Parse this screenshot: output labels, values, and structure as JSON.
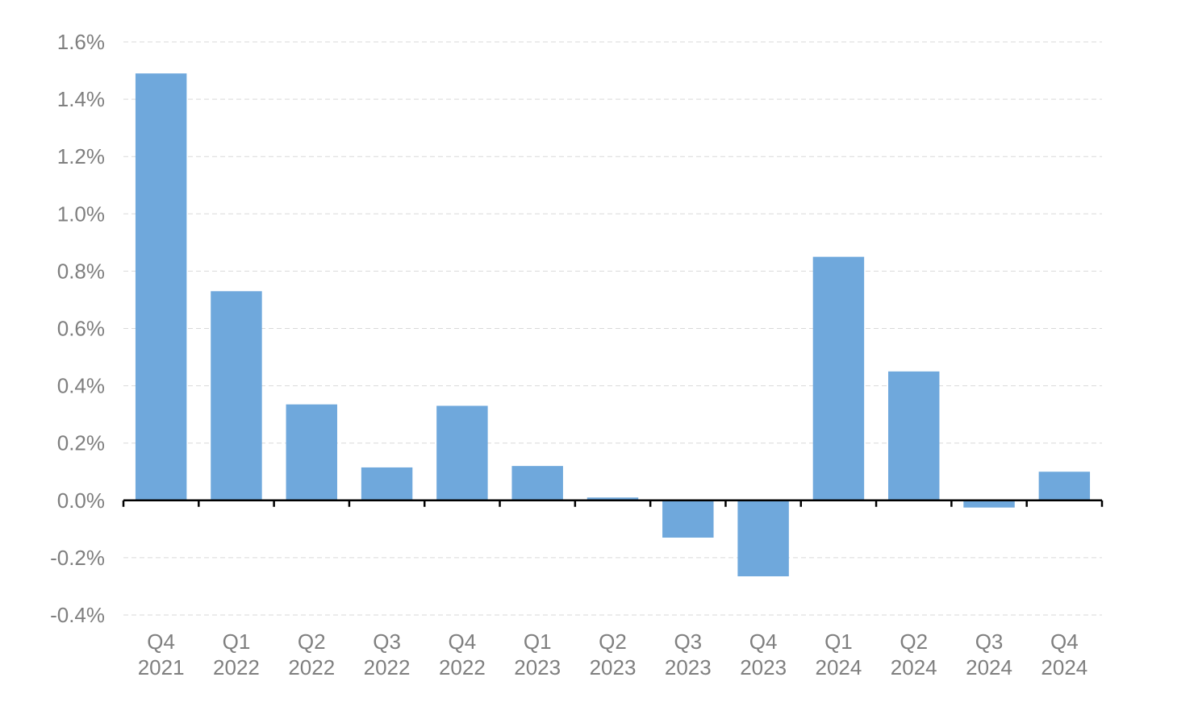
{
  "chart_data": {
    "type": "bar",
    "categories": [
      [
        "Q4",
        "2021"
      ],
      [
        "Q1",
        "2022"
      ],
      [
        "Q2",
        "2022"
      ],
      [
        "Q3",
        "2022"
      ],
      [
        "Q4",
        "2022"
      ],
      [
        "Q1",
        "2023"
      ],
      [
        "Q2",
        "2023"
      ],
      [
        "Q3",
        "2023"
      ],
      [
        "Q4",
        "2023"
      ],
      [
        "Q1",
        "2024"
      ],
      [
        "Q2",
        "2024"
      ],
      [
        "Q3",
        "2024"
      ],
      [
        "Q4",
        "2024"
      ]
    ],
    "values": [
      1.49,
      0.73,
      0.335,
      0.115,
      0.33,
      0.12,
      0.01,
      -0.13,
      -0.265,
      0.85,
      0.45,
      -0.025,
      0.1
    ],
    "ylim": [
      -0.4,
      1.6
    ],
    "yticks": [
      -0.4,
      -0.2,
      0.0,
      0.2,
      0.4,
      0.6,
      0.8,
      1.0,
      1.2,
      1.4,
      1.6
    ],
    "ytick_labels": [
      "-0.4%",
      "-0.2%",
      "0.0%",
      "0.2%",
      "0.4%",
      "0.6%",
      "0.8%",
      "1.0%",
      "1.2%",
      "1.4%",
      "1.6%"
    ],
    "grid": true,
    "bar_color": "#6fa8dc",
    "title": "",
    "xlabel": "",
    "ylabel": ""
  }
}
